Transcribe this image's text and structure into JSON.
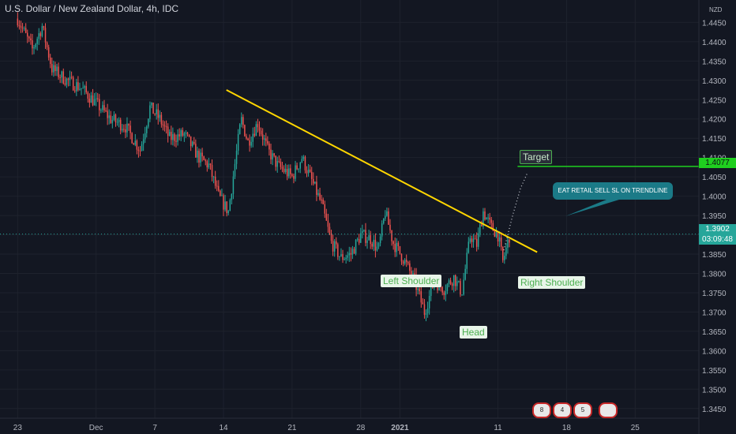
{
  "header": {
    "title": "U.S. Dollar / New Zealand Dollar, 4h, IDC",
    "currency": "NZD"
  },
  "price_tags": {
    "target": "1.4077",
    "last": "1.3902",
    "timer": "03:09:48"
  },
  "annotations": {
    "target": "Target",
    "left_shoulder": "Left Shoulder",
    "head": "Head",
    "right_shoulder": "Right Shoulder",
    "callout": "EAT RETAIL SELL SL ON TRENDLINE"
  },
  "events": [
    "8",
    "4",
    "5",
    ""
  ],
  "colors": {
    "up": "#26a69a",
    "down": "#ef5350",
    "trendline": "#ffd600",
    "target_line": "#1fcf1f",
    "callout": "#1b7a87"
  },
  "chart_data": {
    "type": "candlestick",
    "title": "U.S. Dollar / New Zealand Dollar, 4h, IDC",
    "ylim": [
      1.3425,
      1.4508
    ],
    "y_ticks": [
      "1.4450",
      "1.4400",
      "1.4350",
      "1.4300",
      "1.4250",
      "1.4200",
      "1.4150",
      "1.4100",
      "1.4050",
      "1.4000",
      "1.3950",
      "1.3900",
      "1.3850",
      "1.3800",
      "1.3750",
      "1.3700",
      "1.3650",
      "1.3600",
      "1.3550",
      "1.3500",
      "1.3450"
    ],
    "x_ticks": [
      "23",
      "Dec",
      "7",
      "14",
      "21",
      "28",
      "2021",
      "11",
      "18",
      "25"
    ],
    "x_tick_days": [
      0,
      8,
      14,
      21,
      28,
      35,
      39,
      49,
      56,
      63
    ],
    "xlim_days": [
      -1.8,
      69.5
    ],
    "price_path": [
      [
        0,
        1.446
      ],
      [
        1.5,
        1.438
      ],
      [
        2.5,
        1.444
      ],
      [
        3.5,
        1.433
      ],
      [
        5,
        1.43
      ],
      [
        6.5,
        1.428
      ],
      [
        8,
        1.424
      ],
      [
        9.5,
        1.42
      ],
      [
        11,
        1.418
      ],
      [
        12.5,
        1.412
      ],
      [
        13.5,
        1.423
      ],
      [
        14.5,
        1.42
      ],
      [
        15.5,
        1.415
      ],
      [
        17,
        1.416
      ],
      [
        18.5,
        1.41
      ],
      [
        19.5,
        1.408
      ],
      [
        20.5,
        1.4
      ],
      [
        21.5,
        1.396
      ],
      [
        22.8,
        1.42
      ],
      [
        23.5,
        1.414
      ],
      [
        24.5,
        1.419
      ],
      [
        25.5,
        1.412
      ],
      [
        26.5,
        1.408
      ],
      [
        28,
        1.405
      ],
      [
        29,
        1.41
      ],
      [
        30,
        1.404
      ],
      [
        31,
        1.398
      ],
      [
        32,
        1.388
      ],
      [
        33,
        1.384
      ],
      [
        34,
        1.385
      ],
      [
        35,
        1.39
      ],
      [
        36,
        1.389
      ],
      [
        36.8,
        1.386
      ],
      [
        37.5,
        1.396
      ],
      [
        38.3,
        1.388
      ],
      [
        39.3,
        1.384
      ],
      [
        40.5,
        1.378
      ],
      [
        41.5,
        1.37
      ],
      [
        42.5,
        1.378
      ],
      [
        43.5,
        1.376
      ],
      [
        44.5,
        1.379
      ],
      [
        45.3,
        1.375
      ],
      [
        46.2,
        1.39
      ],
      [
        46.8,
        1.387
      ],
      [
        47.5,
        1.396
      ],
      [
        48.3,
        1.392
      ],
      [
        49,
        1.39
      ],
      [
        49.5,
        1.383
      ],
      [
        50.2,
        1.39
      ]
    ],
    "overlays": {
      "trendline": {
        "start": [
          21.3,
          1.4275
        ],
        "end": [
          53,
          1.3855
        ]
      },
      "target_line": {
        "start": [
          51,
          1.4077
        ],
        "end": [
          69.5,
          1.4077
        ]
      },
      "last_price": 1.3902,
      "projection_path": [
        [
          49.6,
          1.386
        ],
        [
          50.5,
          1.395
        ],
        [
          51.3,
          1.402
        ],
        [
          52,
          1.406
        ]
      ]
    }
  }
}
